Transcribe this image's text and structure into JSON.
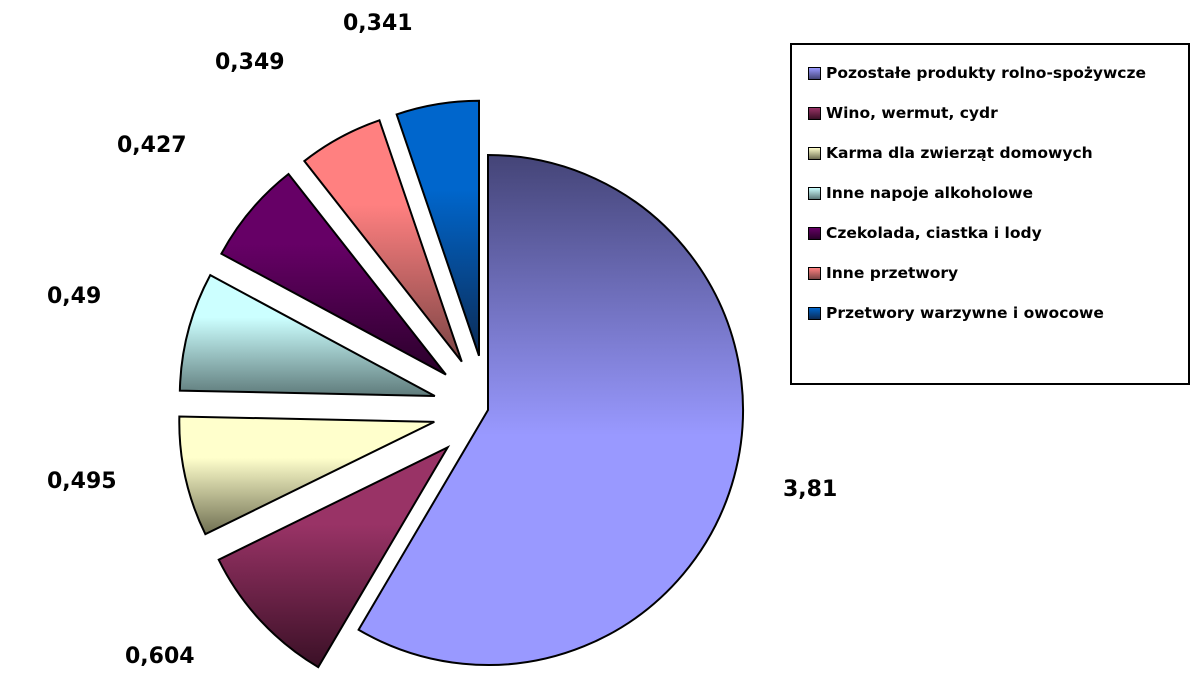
{
  "chart_data": {
    "type": "pie",
    "title": "",
    "exploded": true,
    "legend_position": "right",
    "label_format": "decimal comma",
    "categories": [
      "Pozostałe produkty rolno-spożywcze",
      "Wino, wermut, cydr",
      "Karma dla zwierząt domowych",
      "Inne napoje alkoholowe",
      "Czekolada, ciastka i lody",
      "Inne przetwory",
      "Przetwory warzywne i owocowe"
    ],
    "values": [
      3.81,
      0.604,
      0.495,
      0.49,
      0.427,
      0.349,
      0.341
    ],
    "value_labels": [
      "3,81",
      "0,604",
      "0,495",
      "0,49",
      "0,427",
      "0,349",
      "0,341"
    ],
    "colors": [
      {
        "light": "#9999ff",
        "dark": "#444477"
      },
      {
        "light": "#993366",
        "dark": "#3a1026"
      },
      {
        "light": "#ffffcc",
        "dark": "#6f6f52"
      },
      {
        "light": "#ccffff",
        "dark": "#5f7b7b"
      },
      {
        "light": "#660066",
        "dark": "#2a002a"
      },
      {
        "light": "#ff8080",
        "dark": "#7a4444"
      },
      {
        "light": "#0066cc",
        "dark": "#0c2b55"
      }
    ]
  }
}
